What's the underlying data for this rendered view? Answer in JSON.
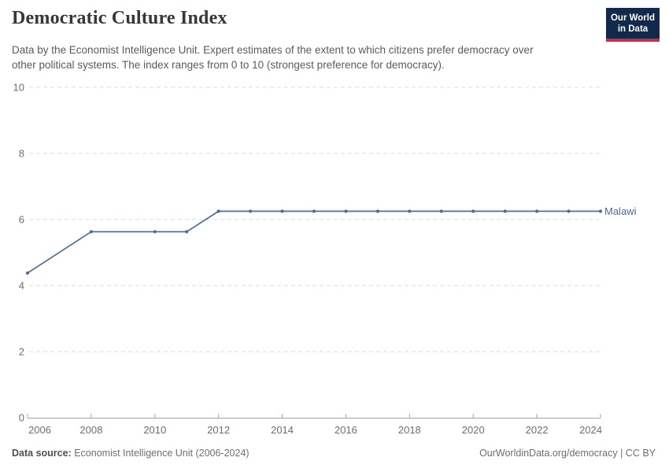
{
  "header": {
    "title": "Democratic Culture Index",
    "subtitle_lines": [
      "Data by the Economist Intelligence Unit. Expert estimates of the extent to which citizens prefer democracy over",
      "other political systems. The index ranges from 0 to 10 (strongest preference for democracy)."
    ],
    "logo": {
      "line1": "Our World",
      "line2": "in Data",
      "bg_color": "#12294b",
      "accent_color": "#c5303e"
    }
  },
  "chart_data": {
    "type": "line",
    "title": "Democratic Culture Index",
    "xlabel": "",
    "ylabel": "",
    "xlim": [
      2006,
      2024
    ],
    "ylim": [
      0,
      10
    ],
    "x_ticks": [
      2006,
      2008,
      2010,
      2012,
      2014,
      2016,
      2018,
      2020,
      2022,
      2024
    ],
    "y_ticks": [
      0,
      2,
      4,
      6,
      8,
      10
    ],
    "grid": "horizontal-dashed",
    "grid_color": "#dcdcdc",
    "axis_color": "#a5a5a5",
    "legend_position": "end-of-line-label",
    "series": [
      {
        "name": "Malawi",
        "color": "#4c6a9c",
        "points": [
          [
            2006,
            4.38
          ],
          [
            2008,
            5.63
          ],
          [
            2010,
            5.63
          ],
          [
            2011,
            5.63
          ],
          [
            2012,
            6.25
          ],
          [
            2013,
            6.25
          ],
          [
            2014,
            6.25
          ],
          [
            2015,
            6.25
          ],
          [
            2016,
            6.25
          ],
          [
            2017,
            6.25
          ],
          [
            2018,
            6.25
          ],
          [
            2019,
            6.25
          ],
          [
            2020,
            6.25
          ],
          [
            2021,
            6.25
          ],
          [
            2022,
            6.25
          ],
          [
            2023,
            6.25
          ],
          [
            2024,
            6.25
          ]
        ]
      }
    ]
  },
  "footer": {
    "source_label": "Data source:",
    "source_text": "Economist Intelligence Unit (2006-2024)",
    "right_text": "OurWorldinData.org/democracy | CC BY"
  }
}
